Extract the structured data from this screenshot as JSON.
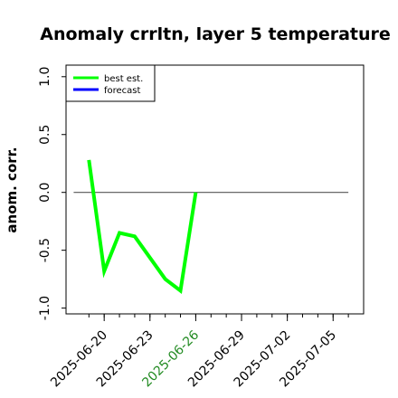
{
  "chart_data": {
    "type": "line",
    "title": "Anomaly crrltn, layer 5 temperature",
    "ylabel": "anom. corr.",
    "xlabel": "",
    "ylim": [
      -1.05,
      1.1
    ],
    "yticks": [
      -1.0,
      -0.5,
      0.0,
      0.5,
      1.0
    ],
    "ytick_labels": [
      "-1.0",
      "-0.5",
      "0.0",
      "0.5",
      "1.0"
    ],
    "x_ticks_minor": [
      "2025-06-19",
      "2025-06-20",
      "2025-06-21",
      "2025-06-22",
      "2025-06-23",
      "2025-06-24",
      "2025-06-25",
      "2025-06-26",
      "2025-06-27",
      "2025-06-28",
      "2025-06-29",
      "2025-06-30",
      "2025-07-01",
      "2025-07-02",
      "2025-07-03",
      "2025-07-04",
      "2025-07-05",
      "2025-07-06"
    ],
    "x_labels": [
      {
        "date": "2025-06-20",
        "label": "2025-06-20",
        "color": "#000000"
      },
      {
        "date": "2025-06-23",
        "label": "2025-06-23",
        "color": "#000000"
      },
      {
        "date": "2025-06-26",
        "label": "2025-06-26",
        "color": "#228b22"
      },
      {
        "date": "2025-06-29",
        "label": "2025-06-29",
        "color": "#000000"
      },
      {
        "date": "2025-07-02",
        "label": "2025-07-02",
        "color": "#000000"
      },
      {
        "date": "2025-07-05",
        "label": "2025-07-05",
        "color": "#000000"
      }
    ],
    "xlim": [
      "2025-06-17T12:00",
      "2025-07-07T00:00"
    ],
    "reference_line": {
      "y": 0.0,
      "from": "2025-06-18",
      "to": "2025-07-06",
      "color": "#555555"
    },
    "series": [
      {
        "name": "best est.",
        "color": "#00ff00",
        "points": [
          {
            "x": "2025-06-19",
            "y": 0.28
          },
          {
            "x": "2025-06-20",
            "y": -0.68
          },
          {
            "x": "2025-06-21",
            "y": -0.35
          },
          {
            "x": "2025-06-22",
            "y": -0.38
          },
          {
            "x": "2025-06-24",
            "y": -0.75
          },
          {
            "x": "2025-06-25",
            "y": -0.85
          },
          {
            "x": "2025-06-26",
            "y": 0.0
          }
        ]
      },
      {
        "name": "forecast",
        "color": "#0000ff",
        "points": []
      }
    ],
    "legend": {
      "position": "top-left"
    },
    "grid": false
  }
}
